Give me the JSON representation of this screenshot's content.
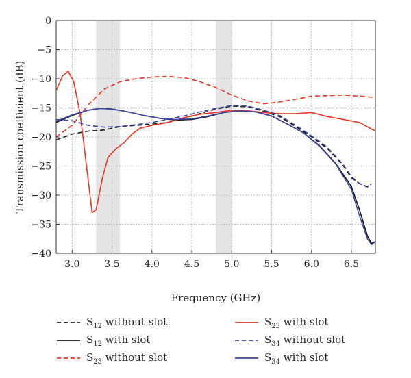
{
  "chart_data": {
    "type": "line",
    "xlabel": "Frequency (GHz)",
    "ylabel": "Transmission coefficient (dB)",
    "xlim": [
      2.8,
      6.8
    ],
    "ylim": [
      -40,
      0
    ],
    "xticks": [
      3.0,
      3.5,
      4.0,
      4.5,
      5.0,
      5.5,
      6.0,
      6.5
    ],
    "xtick_labels": [
      "3.0",
      "3.5",
      "4.0",
      "4.5",
      "5.0",
      "5.5",
      "6.0",
      "6.5"
    ],
    "yticks": [
      0,
      -5,
      -10,
      -15,
      -20,
      -25,
      -30,
      -35,
      -40
    ],
    "ytick_labels": [
      "0",
      "−5",
      "−10",
      "−15",
      "−20",
      "−25",
      "−30",
      "−35",
      "−40"
    ],
    "grid": true,
    "legend_position": "bottom",
    "shaded_bands": [
      [
        3.3,
        3.6
      ],
      [
        4.8,
        5.0
      ]
    ],
    "reference_line": {
      "y": -15,
      "color": "#888888",
      "style": "dash-dot"
    },
    "series": [
      {
        "name": "S12 without slot",
        "label_base": "S",
        "label_sub": "12",
        "label_rest": " without slot",
        "color": "#1a1a1a",
        "dash": "dashed",
        "x": [
          2.8,
          3.0,
          3.2,
          3.4,
          3.6,
          3.8,
          4.0,
          4.2,
          4.4,
          4.6,
          4.8,
          5.0,
          5.2,
          5.4,
          5.6,
          5.8,
          6.0,
          6.2,
          6.4,
          6.5,
          6.6,
          6.7,
          6.75
        ],
        "y": [
          -20.5,
          -19.5,
          -19.0,
          -18.8,
          -18.2,
          -18.0,
          -17.8,
          -17.5,
          -16.8,
          -16.0,
          -15.2,
          -14.7,
          -14.8,
          -15.6,
          -16.5,
          -18.2,
          -20.0,
          -22.0,
          -25.0,
          -27.0,
          -28.0,
          -28.6,
          -28.0
        ]
      },
      {
        "name": "S12 with slot",
        "label_base": "S",
        "label_sub": "12",
        "label_rest": " with slot",
        "color": "#111111",
        "dash": "solid",
        "x": [
          2.8,
          3.0,
          3.2,
          3.35,
          3.5,
          3.7,
          3.9,
          4.1,
          4.3,
          4.5,
          4.7,
          4.9,
          5.1,
          5.3,
          5.5,
          5.7,
          5.9,
          6.1,
          6.3,
          6.5,
          6.6,
          6.7,
          6.75,
          6.8
        ],
        "y": [
          -17.5,
          -16.3,
          -15.4,
          -15.1,
          -15.2,
          -15.7,
          -16.3,
          -16.8,
          -17.1,
          -17.0,
          -16.5,
          -15.8,
          -15.5,
          -15.7,
          -16.4,
          -17.8,
          -19.3,
          -21.5,
          -24.5,
          -28.5,
          -32.5,
          -37.0,
          -38.3,
          -38.0
        ]
      },
      {
        "name": "S23 without slot",
        "label_base": "S",
        "label_sub": "23",
        "label_rest": " without slot",
        "color": "#ee3322",
        "dash": "dashed",
        "x": [
          2.8,
          3.0,
          3.2,
          3.4,
          3.6,
          3.8,
          4.0,
          4.2,
          4.4,
          4.6,
          4.8,
          5.0,
          5.2,
          5.4,
          5.6,
          5.8,
          6.0,
          6.2,
          6.4,
          6.6,
          6.8
        ],
        "y": [
          -20.0,
          -18.0,
          -14.5,
          -11.8,
          -10.5,
          -10.0,
          -9.7,
          -9.6,
          -9.8,
          -10.5,
          -11.5,
          -12.8,
          -13.8,
          -14.3,
          -14.0,
          -13.5,
          -13.0,
          -12.9,
          -12.8,
          -13.0,
          -13.2
        ]
      },
      {
        "name": "S23 with slot",
        "label_base": "S",
        "label_sub": "23",
        "label_rest": " with slot",
        "color": "#ee3322",
        "dash": "solid",
        "x": [
          2.8,
          2.88,
          2.95,
          3.02,
          3.1,
          3.18,
          3.25,
          3.3,
          3.38,
          3.45,
          3.55,
          3.65,
          3.75,
          3.85,
          4.0,
          4.2,
          4.4,
          4.6,
          4.8,
          5.0,
          5.2,
          5.4,
          5.6,
          5.8,
          6.0,
          6.2,
          6.4,
          6.6,
          6.8
        ],
        "y": [
          -12.0,
          -9.5,
          -8.7,
          -10.5,
          -16.0,
          -25.0,
          -33.0,
          -32.5,
          -27.0,
          -23.5,
          -22.0,
          -21.0,
          -19.5,
          -18.5,
          -18.0,
          -17.5,
          -16.7,
          -16.1,
          -15.8,
          -15.4,
          -15.5,
          -15.8,
          -16.0,
          -16.0,
          -15.8,
          -16.5,
          -17.0,
          -17.5,
          -19.0
        ]
      },
      {
        "name": "S34 without slot",
        "label_base": "S",
        "label_sub": "34",
        "label_rest": " without slot",
        "color": "#3a46a0",
        "dash": "dashed",
        "x": [
          2.8,
          3.0,
          3.2,
          3.4,
          3.6,
          3.8,
          4.0,
          4.2,
          4.4,
          4.6,
          4.8,
          5.0,
          5.2,
          5.4,
          5.6,
          5.8,
          6.0,
          6.2,
          6.4,
          6.5,
          6.6,
          6.7,
          6.75
        ],
        "y": [
          -17.0,
          -17.2,
          -18.0,
          -18.3,
          -18.2,
          -17.9,
          -17.5,
          -17.0,
          -16.4,
          -15.7,
          -15.1,
          -14.6,
          -14.7,
          -15.4,
          -16.3,
          -18.0,
          -19.8,
          -21.8,
          -24.8,
          -26.8,
          -28.0,
          -28.5,
          -28.0
        ]
      },
      {
        "name": "S34 with slot",
        "label_base": "S",
        "label_sub": "34",
        "label_rest": " with slot",
        "color": "#3a46a0",
        "dash": "solid",
        "x": [
          2.8,
          3.0,
          3.2,
          3.35,
          3.5,
          3.7,
          3.9,
          4.1,
          4.3,
          4.5,
          4.7,
          4.9,
          5.1,
          5.3,
          5.5,
          5.7,
          5.9,
          6.1,
          6.3,
          6.5,
          6.6,
          6.7,
          6.75,
          6.8
        ],
        "y": [
          -17.3,
          -16.2,
          -15.4,
          -15.1,
          -15.2,
          -15.7,
          -16.3,
          -16.8,
          -17.0,
          -16.9,
          -16.4,
          -15.8,
          -15.5,
          -15.7,
          -16.4,
          -17.8,
          -19.3,
          -21.6,
          -24.6,
          -29.0,
          -33.5,
          -37.5,
          -38.5,
          -38.0
        ]
      }
    ]
  }
}
